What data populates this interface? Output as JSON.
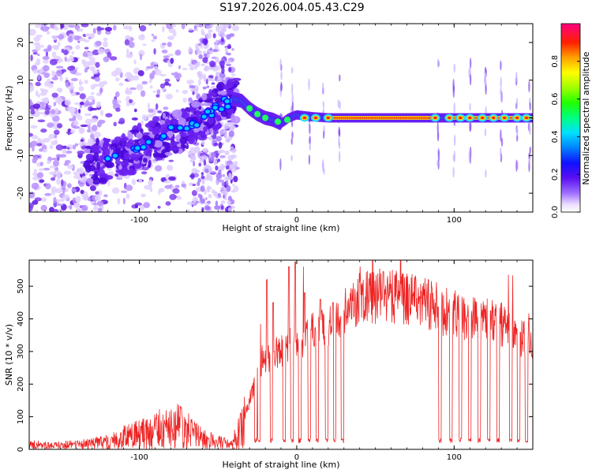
{
  "title": "S197.2026.004.05.43.C29",
  "chart_data": [
    {
      "type": "heatmap",
      "name": "spectrogram",
      "xlabel": "Height of straight line (km)",
      "ylabel": "Frequency (Hz)",
      "xlim": [
        -170,
        150
      ],
      "ylim": [
        -25,
        25
      ],
      "xticks": [
        -100,
        0,
        100
      ],
      "yticks": [
        -20,
        -10,
        0,
        10,
        20
      ],
      "trace": {
        "x": [
          -130,
          -120,
          -110,
          -100,
          -90,
          -80,
          -70,
          -60,
          -50,
          -40,
          -35,
          -30,
          -25,
          -20,
          -15,
          -10,
          -5,
          0,
          10,
          20,
          40,
          60,
          80,
          100,
          120,
          150
        ],
        "y": [
          -12,
          -11,
          -10,
          -8,
          -6,
          -4,
          -3,
          0,
          3,
          5,
          4.5,
          2.5,
          1,
          0,
          -0.5,
          -1.5,
          0,
          0.8,
          0.3,
          0,
          0,
          0,
          0,
          0,
          0,
          0
        ]
      },
      "hot_band": [
        {
          "x0": 20,
          "x1": 85
        },
        {
          "x0": 95,
          "x1": 150
        }
      ],
      "colorbar": {
        "label": "Normalized spectral amplitude",
        "ticks": [
          "0.0",
          "0.2",
          "0.4",
          "0.6",
          "0.8"
        ],
        "range": [
          0,
          1
        ]
      }
    },
    {
      "type": "line",
      "name": "snr",
      "xlabel": "Height of straight line (km)",
      "ylabel": "SNR (10 * v/v)",
      "xlim": [
        -170,
        150
      ],
      "ylim": [
        0,
        580
      ],
      "xticks": [
        -100,
        0,
        100
      ],
      "yticks": [
        0,
        100,
        200,
        300,
        400,
        500
      ],
      "color": "#ee2222",
      "envelope": {
        "x": [
          -170,
          -140,
          -120,
          -110,
          -100,
          -90,
          -80,
          -75,
          -70,
          -60,
          -50,
          -42,
          -35,
          -30,
          -25,
          -20,
          -10,
          0,
          10,
          20,
          30,
          40,
          50,
          60,
          70,
          80,
          90,
          100,
          110,
          120,
          130,
          140,
          150
        ],
        "y": [
          15,
          15,
          25,
          40,
          50,
          60,
          70,
          75,
          65,
          40,
          25,
          15,
          70,
          150,
          230,
          280,
          310,
          340,
          360,
          380,
          430,
          470,
          480,
          480,
          470,
          460,
          440,
          420,
          410,
          400,
          390,
          360,
          330
        ]
      },
      "spikes": [
        {
          "x": -19,
          "y": 520
        },
        {
          "x": -15,
          "y": 450
        },
        {
          "x": -5,
          "y": 560
        },
        {
          "x": -1,
          "y": 575
        },
        {
          "x": 5,
          "y": 480
        },
        {
          "x": 15,
          "y": 460
        },
        {
          "x": 23,
          "y": 450
        },
        {
          "x": 55,
          "y": 545
        }
      ],
      "dropouts": [
        -26,
        -24,
        -16,
        -8,
        -3,
        2,
        8,
        13,
        19,
        24,
        29,
        91,
        98,
        104,
        110,
        116,
        122,
        128,
        136,
        141,
        146
      ]
    }
  ]
}
